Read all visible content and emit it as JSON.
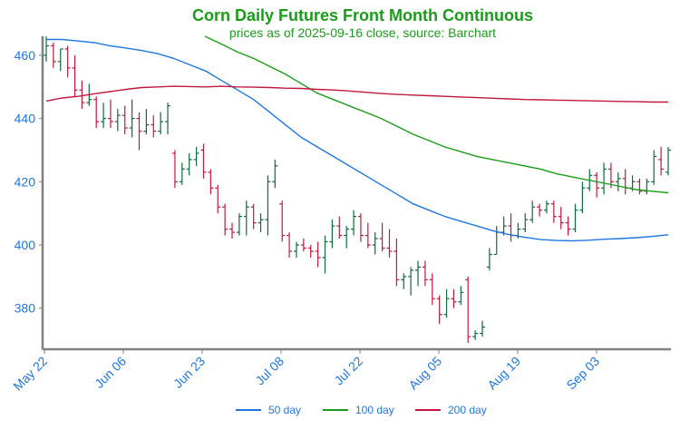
{
  "chart_data": {
    "type": "ohlc",
    "title": "Corn Daily Futures Front Month Continuous",
    "subtitle": "prices as of 2025-09-16 close, source: Barchart",
    "ylim": [
      367,
      466
    ],
    "y_ticks": [
      380,
      400,
      420,
      440,
      460
    ],
    "x_ticks": [
      "May 22",
      "Jun 06",
      "Jun 23",
      "Jul 08",
      "Jul 22",
      "Aug 05",
      "Aug 19",
      "Sep 03"
    ],
    "grid": false,
    "legend_position": "bottom",
    "colors": {
      "title": "#1a9c1a",
      "axis_text": "#1f77e0",
      "up": "#0d6b3a",
      "down": "#c2183c",
      "ma50": "#1f77e0",
      "ma100": "#1a9c1a",
      "ma200": "#c2183c",
      "axis": "#808080"
    },
    "series_ohlc": [
      [
        460,
        466,
        458,
        463
      ],
      [
        463,
        464,
        456,
        458
      ],
      [
        458,
        462,
        455,
        462
      ],
      [
        462,
        463,
        453,
        456
      ],
      [
        456,
        460,
        447,
        449
      ],
      [
        449,
        452,
        443,
        445
      ],
      [
        445,
        451,
        444,
        446
      ],
      [
        446,
        447,
        437,
        439
      ],
      [
        439,
        445,
        437,
        440
      ],
      [
        440,
        446,
        437,
        439
      ],
      [
        439,
        443,
        436,
        441
      ],
      [
        441,
        444,
        435,
        437
      ],
      [
        437,
        446,
        434,
        440
      ],
      [
        440,
        442,
        430,
        436
      ],
      [
        436,
        443,
        435,
        438
      ],
      [
        438,
        441,
        434,
        436
      ],
      [
        436,
        442,
        435,
        439
      ],
      [
        439,
        445,
        435,
        444
      ],
      [
        429,
        430,
        418,
        420
      ],
      [
        420,
        426,
        419,
        424
      ],
      [
        424,
        429,
        422,
        427
      ],
      [
        427,
        431,
        425,
        429
      ],
      [
        430,
        432,
        421,
        423
      ],
      [
        423,
        424,
        416,
        418
      ],
      [
        418,
        419,
        410,
        412
      ],
      [
        412,
        413,
        403,
        405
      ],
      [
        405,
        407,
        402,
        404
      ],
      [
        404,
        410,
        403,
        409
      ],
      [
        409,
        414,
        403,
        412
      ],
      [
        412,
        413,
        405,
        407
      ],
      [
        407,
        410,
        404,
        408
      ],
      [
        408,
        422,
        403,
        420
      ],
      [
        420,
        427,
        418,
        425
      ],
      [
        413,
        414,
        401,
        403
      ],
      [
        403,
        404,
        396,
        398
      ],
      [
        398,
        401,
        396,
        400
      ],
      [
        400,
        402,
        398,
        399
      ],
      [
        399,
        400,
        396,
        398
      ],
      [
        398,
        401,
        393,
        396
      ],
      [
        396,
        403,
        391,
        401
      ],
      [
        401,
        408,
        399,
        406
      ],
      [
        406,
        409,
        402,
        403
      ],
      [
        403,
        406,
        399,
        405
      ],
      [
        405,
        411,
        403,
        409
      ],
      [
        409,
        410,
        401,
        403
      ],
      [
        403,
        407,
        399,
        400
      ],
      [
        400,
        404,
        397,
        402
      ],
      [
        402,
        407,
        398,
        399
      ],
      [
        399,
        405,
        396,
        398
      ],
      [
        398,
        402,
        387,
        389
      ],
      [
        389,
        391,
        386,
        390
      ],
      [
        390,
        393,
        384,
        392
      ],
      [
        392,
        395,
        387,
        393
      ],
      [
        393,
        395,
        387,
        389
      ],
      [
        389,
        391,
        381,
        383
      ],
      [
        383,
        384,
        375,
        378
      ],
      [
        378,
        386,
        377,
        383
      ],
      [
        383,
        386,
        380,
        382
      ],
      [
        382,
        387,
        381,
        385
      ],
      [
        389,
        390,
        369,
        371
      ],
      [
        371,
        373,
        370,
        372
      ],
      [
        372,
        376,
        371,
        374
      ],
      [
        393,
        399,
        392,
        397
      ],
      [
        397,
        406,
        397,
        404
      ],
      [
        404,
        409,
        403,
        406
      ],
      [
        406,
        410,
        401,
        403
      ],
      [
        403,
        407,
        402,
        405
      ],
      [
        405,
        410,
        404,
        408
      ],
      [
        408,
        414,
        407,
        412
      ],
      [
        412,
        413,
        409,
        411
      ],
      [
        411,
        414,
        410,
        413
      ],
      [
        413,
        414,
        407,
        409
      ],
      [
        409,
        412,
        405,
        407
      ],
      [
        407,
        409,
        403,
        405
      ],
      [
        405,
        413,
        404,
        411
      ],
      [
        411,
        420,
        410,
        418
      ],
      [
        418,
        424,
        417,
        422
      ],
      [
        422,
        423,
        415,
        418
      ],
      [
        418,
        426,
        416,
        424
      ],
      [
        424,
        426,
        418,
        420
      ],
      [
        420,
        423,
        417,
        421
      ],
      [
        421,
        424,
        416,
        418
      ],
      [
        418,
        422,
        417,
        420
      ],
      [
        420,
        421,
        416,
        417
      ],
      [
        417,
        421,
        416,
        420
      ],
      [
        420,
        430,
        419,
        428
      ],
      [
        427,
        431,
        422,
        424
      ],
      [
        423,
        431,
        422,
        430
      ]
    ],
    "series": [
      {
        "name": "50 day",
        "values": [
          465,
          465,
          464.5,
          464,
          463,
          462.3,
          461.5,
          460.5,
          459,
          457,
          455,
          452,
          449,
          446,
          442,
          438,
          434,
          431,
          428,
          425,
          422,
          419,
          416,
          413,
          411,
          409,
          407.5,
          406,
          404.5,
          403.3,
          402.4,
          401.7,
          401.4,
          401.3,
          401.5,
          401.8,
          402,
          402.3,
          402.7,
          403.2
        ]
      },
      {
        "name": "100 day",
        "values": [
          null,
          null,
          null,
          null,
          null,
          null,
          null,
          null,
          null,
          null,
          466,
          463.5,
          461,
          459,
          456.5,
          454,
          451,
          448,
          446,
          444,
          442,
          440,
          437.5,
          435,
          433,
          431,
          429.5,
          428,
          427,
          426,
          425,
          424,
          422.5,
          421.5,
          420.5,
          419.5,
          418.5,
          417.5,
          417,
          416.5
        ]
      },
      {
        "name": "200 day",
        "values": [
          445.5,
          446.5,
          447,
          447.8,
          448.5,
          449.2,
          449.8,
          450,
          450.2,
          450.1,
          450,
          450.2,
          450,
          449.9,
          449.8,
          449.6,
          449.5,
          449.2,
          449,
          448.7,
          448.3,
          447.9,
          447.6,
          447.4,
          447.2,
          447,
          446.8,
          446.6,
          446.4,
          446.2,
          446,
          445.9,
          445.8,
          445.7,
          445.6,
          445.5,
          445.4,
          445.3,
          445.2,
          445.2
        ]
      }
    ]
  },
  "legend": {
    "ma50": "50 day",
    "ma100": "100 day",
    "ma200": "200 day"
  }
}
